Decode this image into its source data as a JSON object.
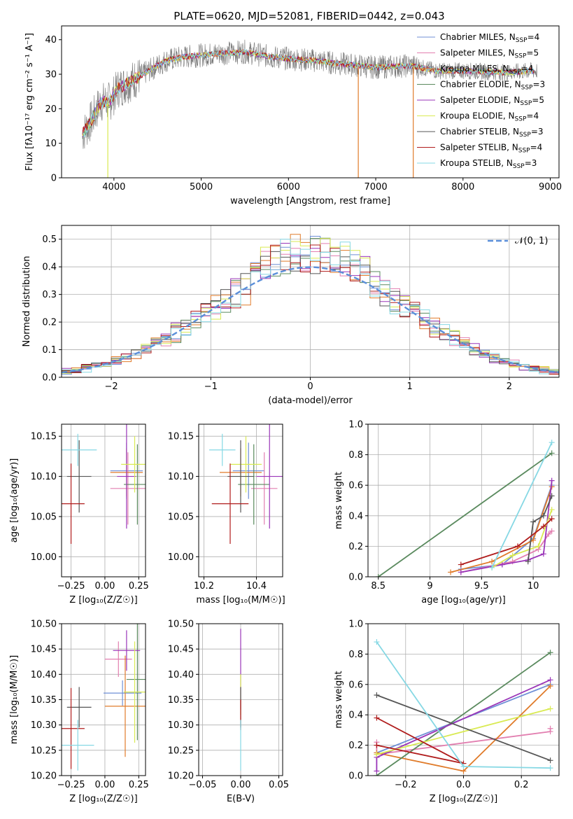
{
  "title": "PLATE=0620, MJD=52081, FIBERID=0442, z=0.043",
  "colors": {
    "Chabrier MILES": "#6f8fd6",
    "Salpeter MILES": "#e27fb0",
    "Kroupa MILES": "#e07b2a",
    "Chabrier ELODIE": "#5a8a5e",
    "Salpeter ELODIE": "#9a35b8",
    "Kroupa ELODIE": "#d9ea52",
    "Chabrier STELIB": "#555555",
    "Salpeter STELIB": "#b01c1c",
    "Kroupa STELIB": "#86d8e4"
  },
  "chart_data": [
    {
      "id": "spectrum",
      "type": "line",
      "title": "PLATE=0620, MJD=52081, FIBERID=0442, z=0.043",
      "xlabel": "wavelength [Angstrom, rest frame]",
      "ylabel": "Flux [fλ10⁻¹⁷ erg cm⁻² s⁻¹ A⁻¹]",
      "xlim": [
        3400,
        9100
      ],
      "ylim": [
        0,
        44
      ],
      "xticks": [
        4000,
        5000,
        6000,
        7000,
        8000,
        9000
      ],
      "yticks": [
        0,
        10,
        20,
        30,
        40
      ],
      "grid": false,
      "legend_position": "right",
      "legend": [
        {
          "model": "Chabrier MILES",
          "label": "Chabrier MILES, N",
          "sub": "SSP",
          "n": "=4"
        },
        {
          "model": "Salpeter MILES",
          "label": "Salpeter MILES, N",
          "sub": "SSP",
          "n": "=5"
        },
        {
          "model": "Kroupa MILES",
          "label": "Kroupa MILES, N",
          "sub": "SSP",
          "n": "=4"
        },
        {
          "model": "Chabrier ELODIE",
          "label": "Chabrier ELODIE, N",
          "sub": "SSP",
          "n": "=3"
        },
        {
          "model": "Salpeter ELODIE",
          "label": "Salpeter ELODIE, N",
          "sub": "SSP",
          "n": "=5"
        },
        {
          "model": "Kroupa ELODIE",
          "label": "Kroupa ELODIE, N",
          "sub": "SSP",
          "n": "=4"
        },
        {
          "model": "Chabrier STELIB",
          "label": "Chabrier STELIB, N",
          "sub": "SSP",
          "n": "=3"
        },
        {
          "model": "Salpeter STELIB",
          "label": "Salpeter STELIB, N",
          "sub": "SSP",
          "n": "=4"
        },
        {
          "model": "Kroupa STELIB",
          "label": "Kroupa STELIB, N",
          "sub": "SSP",
          "n": "=3"
        }
      ],
      "continuum_anchors": [
        [
          3650,
          13
        ],
        [
          3750,
          17
        ],
        [
          3850,
          22
        ],
        [
          3950,
          22
        ],
        [
          4050,
          26
        ],
        [
          4200,
          28
        ],
        [
          4400,
          31
        ],
        [
          4600,
          34
        ],
        [
          4800,
          35
        ],
        [
          5000,
          35.5
        ],
        [
          5200,
          36
        ],
        [
          5500,
          36.5
        ],
        [
          5800,
          35
        ],
        [
          6000,
          34.5
        ],
        [
          6300,
          34
        ],
        [
          6600,
          33
        ],
        [
          7000,
          32
        ],
        [
          7400,
          32.5
        ],
        [
          7700,
          31
        ],
        [
          8000,
          31
        ],
        [
          8500,
          30.5
        ],
        [
          8800,
          31
        ]
      ],
      "spikes": [
        [
          6800,
          0,
          "Kroupa MILES"
        ],
        [
          7430,
          0,
          "Kroupa MILES"
        ],
        [
          3930,
          0,
          "Kroupa ELODIE"
        ]
      ]
    },
    {
      "id": "residuals",
      "type": "area",
      "xlabel": "(data-model)/error",
      "ylabel": "Normed distribution",
      "xlim": [
        -2.5,
        2.5
      ],
      "ylim": [
        0,
        0.55
      ],
      "xticks": [
        -2,
        -1,
        0,
        1,
        2
      ],
      "yticks": [
        0.0,
        0.1,
        0.2,
        0.3,
        0.4,
        0.5
      ],
      "grid": true,
      "bin_width": 0.1,
      "gaussian_label": "𝒩(0, 1)",
      "legend_position": "upper right"
    },
    {
      "id": "age-vs-Z",
      "type": "scatter",
      "xlabel": "Z [log₁₀(Z/Z☉)]",
      "ylabel": "age  [log₁₀(age/yr)]",
      "xlim": [
        -0.32,
        0.3
      ],
      "ylim": [
        9.975,
        10.165
      ],
      "xticks": [
        -0.25,
        0.0,
        0.25
      ],
      "xticklabels": [
        "−0.25",
        "0.00",
        "0.25"
      ],
      "yticks": [
        10.0,
        10.05,
        10.1,
        10.15
      ],
      "grid": true,
      "points": [
        {
          "model": "Chabrier MILES",
          "x": 0.16,
          "y": 10.107,
          "xerr": 0.12,
          "yerr": 0.035
        },
        {
          "model": "Salpeter MILES",
          "x": 0.17,
          "y": 10.085,
          "xerr": 0.13,
          "yerr": 0.045
        },
        {
          "model": "Kroupa MILES",
          "x": 0.16,
          "y": 10.105,
          "xerr": 0.12,
          "yerr": 0.03
        },
        {
          "model": "Chabrier ELODIE",
          "x": 0.24,
          "y": 10.09,
          "xerr": 0.1,
          "yerr": 0.05
        },
        {
          "model": "Salpeter ELODIE",
          "x": 0.16,
          "y": 10.1,
          "xerr": 0.07,
          "yerr": 0.065
        },
        {
          "model": "Kroupa ELODIE",
          "x": 0.22,
          "y": 10.115,
          "xerr": 0.1,
          "yerr": 0.035
        },
        {
          "model": "Chabrier STELIB",
          "x": -0.19,
          "y": 10.1,
          "xerr": 0.09,
          "yerr": 0.045
        },
        {
          "model": "Salpeter STELIB",
          "x": -0.25,
          "y": 10.066,
          "xerr": 0.1,
          "yerr": 0.05
        },
        {
          "model": "Kroupa STELIB",
          "x": -0.2,
          "y": 10.133,
          "xerr": 0.14,
          "yerr": 0.02
        }
      ]
    },
    {
      "id": "age-vs-mass",
      "type": "scatter",
      "xlabel": "mass [log₁₀(M/M☉)]",
      "ylabel": "",
      "xlim": [
        10.18,
        10.5
      ],
      "ylim": [
        9.975,
        10.165
      ],
      "xticks": [
        10.2,
        10.4
      ],
      "yticks": [
        10.0,
        10.05,
        10.1,
        10.15
      ],
      "grid": true,
      "points": [
        {
          "model": "Chabrier MILES",
          "x": 10.37,
          "y": 10.107,
          "xerr": 0.06,
          "yerr": 0.035
        },
        {
          "model": "Salpeter MILES",
          "x": 10.43,
          "y": 10.085,
          "xerr": 0.05,
          "yerr": 0.045
        },
        {
          "model": "Kroupa MILES",
          "x": 10.34,
          "y": 10.105,
          "xerr": 0.08,
          "yerr": 0.03
        },
        {
          "model": "Chabrier ELODIE",
          "x": 10.39,
          "y": 10.09,
          "xerr": 0.06,
          "yerr": 0.05
        },
        {
          "model": "Salpeter ELODIE",
          "x": 10.45,
          "y": 10.1,
          "xerr": 0.05,
          "yerr": 0.065
        },
        {
          "model": "Kroupa ELODIE",
          "x": 10.36,
          "y": 10.115,
          "xerr": 0.06,
          "yerr": 0.035
        },
        {
          "model": "Chabrier STELIB",
          "x": 10.34,
          "y": 10.1,
          "xerr": 0.05,
          "yerr": 0.045
        },
        {
          "model": "Salpeter STELIB",
          "x": 10.3,
          "y": 10.066,
          "xerr": 0.07,
          "yerr": 0.05
        },
        {
          "model": "Kroupa STELIB",
          "x": 10.27,
          "y": 10.133,
          "xerr": 0.05,
          "yerr": 0.02
        }
      ]
    },
    {
      "id": "weight-vs-age",
      "type": "line",
      "xlabel": "age  [log₁₀(age/yr)]",
      "ylabel": "mass weight",
      "xlim": [
        8.4,
        10.25
      ],
      "ylim": [
        0,
        1.0
      ],
      "xticks": [
        8.5,
        9.0,
        9.5,
        10.0
      ],
      "yticks": [
        0.0,
        0.2,
        0.4,
        0.6,
        0.8,
        1.0
      ],
      "grid": true,
      "series": [
        {
          "model": "Chabrier MILES",
          "x": [
            9.3,
            9.7,
            10.0,
            10.18
          ],
          "y": [
            0.05,
            0.08,
            0.25,
            0.6
          ]
        },
        {
          "model": "Salpeter MILES",
          "x": [
            9.3,
            9.8,
            10.05,
            10.15,
            10.18
          ],
          "y": [
            0.03,
            0.1,
            0.18,
            0.28,
            0.3
          ]
        },
        {
          "model": "Kroupa MILES",
          "x": [
            9.2,
            9.6,
            10.0,
            10.18
          ],
          "y": [
            0.03,
            0.1,
            0.24,
            0.59
          ]
        },
        {
          "model": "Chabrier ELODIE",
          "x": [
            8.5,
            10.18
          ],
          "y": [
            0.0,
            0.81
          ]
        },
        {
          "model": "Salpeter ELODIE",
          "x": [
            9.3,
            9.7,
            9.95,
            10.1,
            10.18
          ],
          "y": [
            0.03,
            0.08,
            0.11,
            0.15,
            0.63
          ]
        },
        {
          "model": "Kroupa ELODIE",
          "x": [
            9.6,
            9.8,
            10.05,
            10.18
          ],
          "y": [
            0.06,
            0.14,
            0.2,
            0.44
          ]
        },
        {
          "model": "Chabrier STELIB",
          "x": [
            9.95,
            10.0,
            10.1,
            10.18
          ],
          "y": [
            0.1,
            0.36,
            0.4,
            0.53
          ]
        },
        {
          "model": "Salpeter STELIB",
          "x": [
            9.3,
            9.85,
            10.1,
            10.18
          ],
          "y": [
            0.08,
            0.2,
            0.33,
            0.38
          ]
        },
        {
          "model": "Kroupa STELIB",
          "x": [
            9.6,
            10.18
          ],
          "y": [
            0.06,
            0.88
          ]
        }
      ]
    },
    {
      "id": "mass-vs-Z",
      "type": "scatter",
      "xlabel": "Z [log₁₀(Z/Z☉)]",
      "ylabel": "mass [log₁₀(M/M☉)]",
      "xlim": [
        -0.32,
        0.3
      ],
      "ylim": [
        10.2,
        10.5
      ],
      "xticks": [
        -0.25,
        0.0,
        0.25
      ],
      "xticklabels": [
        "−0.25",
        "0.00",
        "0.25"
      ],
      "yticks": [
        10.2,
        10.25,
        10.3,
        10.35,
        10.4,
        10.45,
        10.5
      ],
      "grid": true,
      "points": [
        {
          "model": "Chabrier MILES",
          "x": 0.13,
          "y": 10.363,
          "xerr": 0.14,
          "yerr": 0.025
        },
        {
          "model": "Salpeter MILES",
          "x": 0.1,
          "y": 10.43,
          "xerr": 0.1,
          "yerr": 0.035
        },
        {
          "model": "Kroupa MILES",
          "x": 0.15,
          "y": 10.337,
          "xerr": 0.15,
          "yerr": 0.1
        },
        {
          "model": "Chabrier ELODIE",
          "x": 0.24,
          "y": 10.39,
          "xerr": 0.08,
          "yerr": 0.12
        },
        {
          "model": "Salpeter ELODIE",
          "x": 0.16,
          "y": 10.447,
          "xerr": 0.1,
          "yerr": 0.04
        },
        {
          "model": "Kroupa ELODIE",
          "x": 0.22,
          "y": 10.365,
          "xerr": 0.08,
          "yerr": 0.1
        },
        {
          "model": "Chabrier STELIB",
          "x": -0.19,
          "y": 10.335,
          "xerr": 0.09,
          "yerr": 0.04
        },
        {
          "model": "Salpeter STELIB",
          "x": -0.25,
          "y": 10.293,
          "xerr": 0.1,
          "yerr": 0.08
        },
        {
          "model": "Kroupa STELIB",
          "x": -0.2,
          "y": 10.26,
          "xerr": 0.12,
          "yerr": 0.05
        }
      ]
    },
    {
      "id": "mass-vs-ebv",
      "type": "scatter",
      "xlabel": "E(B-V)",
      "ylabel": "",
      "xlim": [
        -0.055,
        0.055
      ],
      "ylim": [
        10.2,
        10.5
      ],
      "xticks": [
        -0.05,
        0.0,
        0.05
      ],
      "xticklabels": [
        "−0.05",
        "0.00",
        "0.05"
      ],
      "yticks": [
        10.2,
        10.25,
        10.3,
        10.35,
        10.4,
        10.45,
        10.5
      ],
      "grid": true,
      "points": [
        {
          "model": "Salpeter ELODIE",
          "x": 0.0,
          "y": 10.41,
          "yerr": 0.08
        },
        {
          "model": "Kroupa ELODIE",
          "x": 0.0,
          "y": 10.36,
          "yerr": 0.04
        },
        {
          "model": "Chabrier STELIB",
          "x": 0.0,
          "y": 10.335,
          "yerr": 0.04
        },
        {
          "model": "Salpeter STELIB",
          "x": 0.0,
          "y": 10.32,
          "yerr": 0.03
        },
        {
          "model": "Kroupa STELIB",
          "x": 0.0,
          "y": 10.26,
          "yerr": 0.05
        }
      ]
    },
    {
      "id": "weight-vs-Z",
      "type": "line",
      "xlabel": "Z [log₁₀(Z/Z☉)]",
      "ylabel": "mass weight",
      "xlim": [
        -0.33,
        0.33
      ],
      "ylim": [
        0,
        1.0
      ],
      "xticks": [
        -0.2,
        0.0,
        0.2
      ],
      "xticklabels": [
        "−0.2",
        "0.0",
        "0.2"
      ],
      "yticks": [
        0.0,
        0.2,
        0.4,
        0.6,
        0.8,
        1.0
      ],
      "grid": true,
      "series": [
        {
          "model": "Chabrier MILES",
          "x": [
            -0.3,
            0.3
          ],
          "y": [
            0.15,
            0.6
          ]
        },
        {
          "model": "Salpeter MILES",
          "x": [
            -0.3,
            -0.3,
            0.3,
            0.3
          ],
          "y": [
            0.22,
            0.14,
            0.29,
            0.31
          ]
        },
        {
          "model": "Kroupa MILES",
          "x": [
            -0.3,
            0.0,
            0.3
          ],
          "y": [
            0.15,
            0.03,
            0.59
          ]
        },
        {
          "model": "Chabrier ELODIE",
          "x": [
            -0.3,
            0.3
          ],
          "y": [
            0.0,
            0.81
          ]
        },
        {
          "model": "Salpeter ELODIE",
          "x": [
            -0.3,
            -0.3,
            0.3
          ],
          "y": [
            0.03,
            0.12,
            0.63
          ]
        },
        {
          "model": "Kroupa ELODIE",
          "x": [
            -0.3,
            0.3
          ],
          "y": [
            0.14,
            0.44
          ]
        },
        {
          "model": "Chabrier STELIB",
          "x": [
            -0.3,
            0.3
          ],
          "y": [
            0.53,
            0.1
          ]
        },
        {
          "model": "Salpeter STELIB",
          "x": [
            -0.3,
            0.0,
            -0.3
          ],
          "y": [
            0.38,
            0.08,
            0.2
          ]
        },
        {
          "model": "Kroupa STELIB",
          "x": [
            -0.3,
            0.0,
            0.3
          ],
          "y": [
            0.88,
            0.06,
            0.05
          ]
        }
      ]
    }
  ]
}
